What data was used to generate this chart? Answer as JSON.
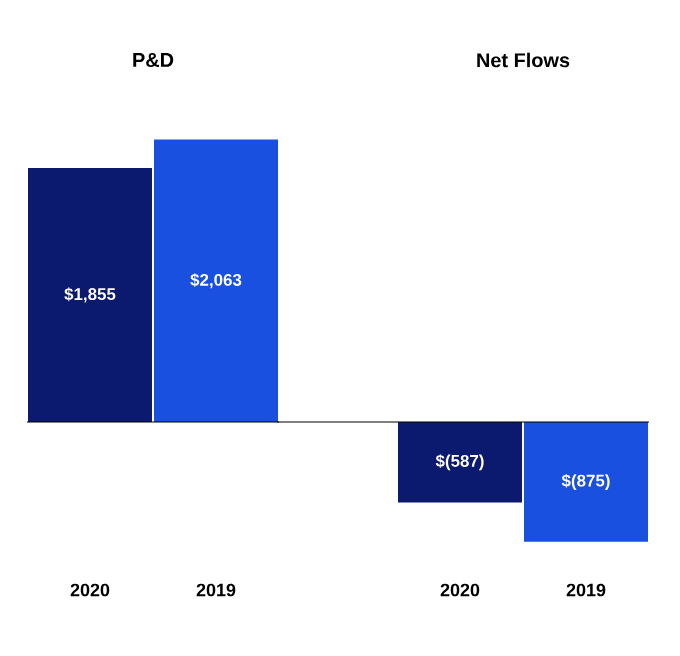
{
  "chart_data": [
    {
      "type": "bar",
      "title": "P&D",
      "categories": [
        "2020",
        "2019"
      ],
      "values": [
        1855,
        2063
      ],
      "colors": [
        "#0b1a6e",
        "#1a50e0"
      ],
      "value_labels": [
        "$1,855",
        "$2,063"
      ]
    },
    {
      "type": "bar",
      "title": "Net Flows",
      "categories": [
        "2020",
        "2019"
      ],
      "values": [
        -587,
        -875
      ],
      "colors": [
        "#0b1a6e",
        "#1a50e0"
      ],
      "value_labels": [
        "$(587)",
        "$(875)"
      ]
    }
  ]
}
